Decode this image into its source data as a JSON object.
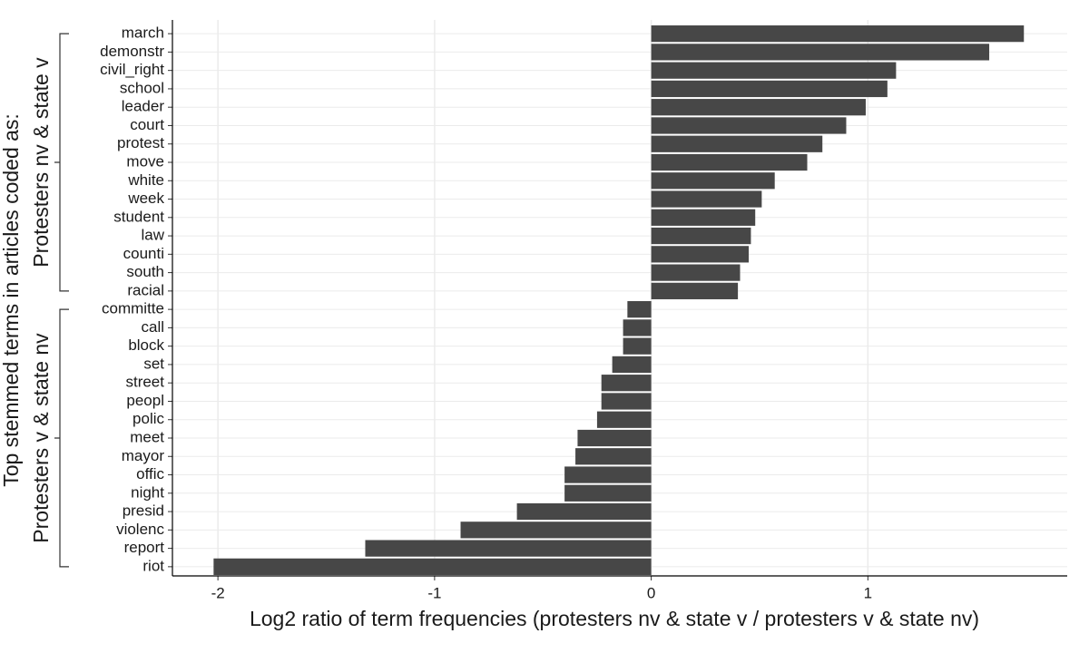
{
  "chart_data": {
    "type": "barh",
    "xlabel": "Log2 ratio of term frequencies (protesters nv & state v / protesters v & state nv)",
    "ylabel": "Top stemmed terms in articles coded as:",
    "groups": [
      "Protesters nv & state v",
      "Protesters v & state nv"
    ],
    "categories": [
      "march",
      "demonstr",
      "civil_right",
      "school",
      "leader",
      "court",
      "protest",
      "move",
      "white",
      "week",
      "student",
      "law",
      "counti",
      "south",
      "racial",
      "committe",
      "call",
      "block",
      "set",
      "street",
      "peopl",
      "polic",
      "meet",
      "mayor",
      "offic",
      "night",
      "presid",
      "violenc",
      "report",
      "riot"
    ],
    "values": [
      1.72,
      1.56,
      1.13,
      1.09,
      0.99,
      0.9,
      0.79,
      0.72,
      0.57,
      0.51,
      0.48,
      0.46,
      0.45,
      0.41,
      0.4,
      -0.11,
      -0.13,
      -0.13,
      -0.18,
      -0.23,
      -0.23,
      -0.25,
      -0.34,
      -0.35,
      -0.4,
      -0.4,
      -0.62,
      -0.88,
      -1.32,
      -2.02
    ],
    "color": "#474747",
    "xlim": [
      -2.21,
      1.92
    ],
    "xticks": [
      -2,
      -1,
      0,
      1
    ],
    "grid": true
  }
}
